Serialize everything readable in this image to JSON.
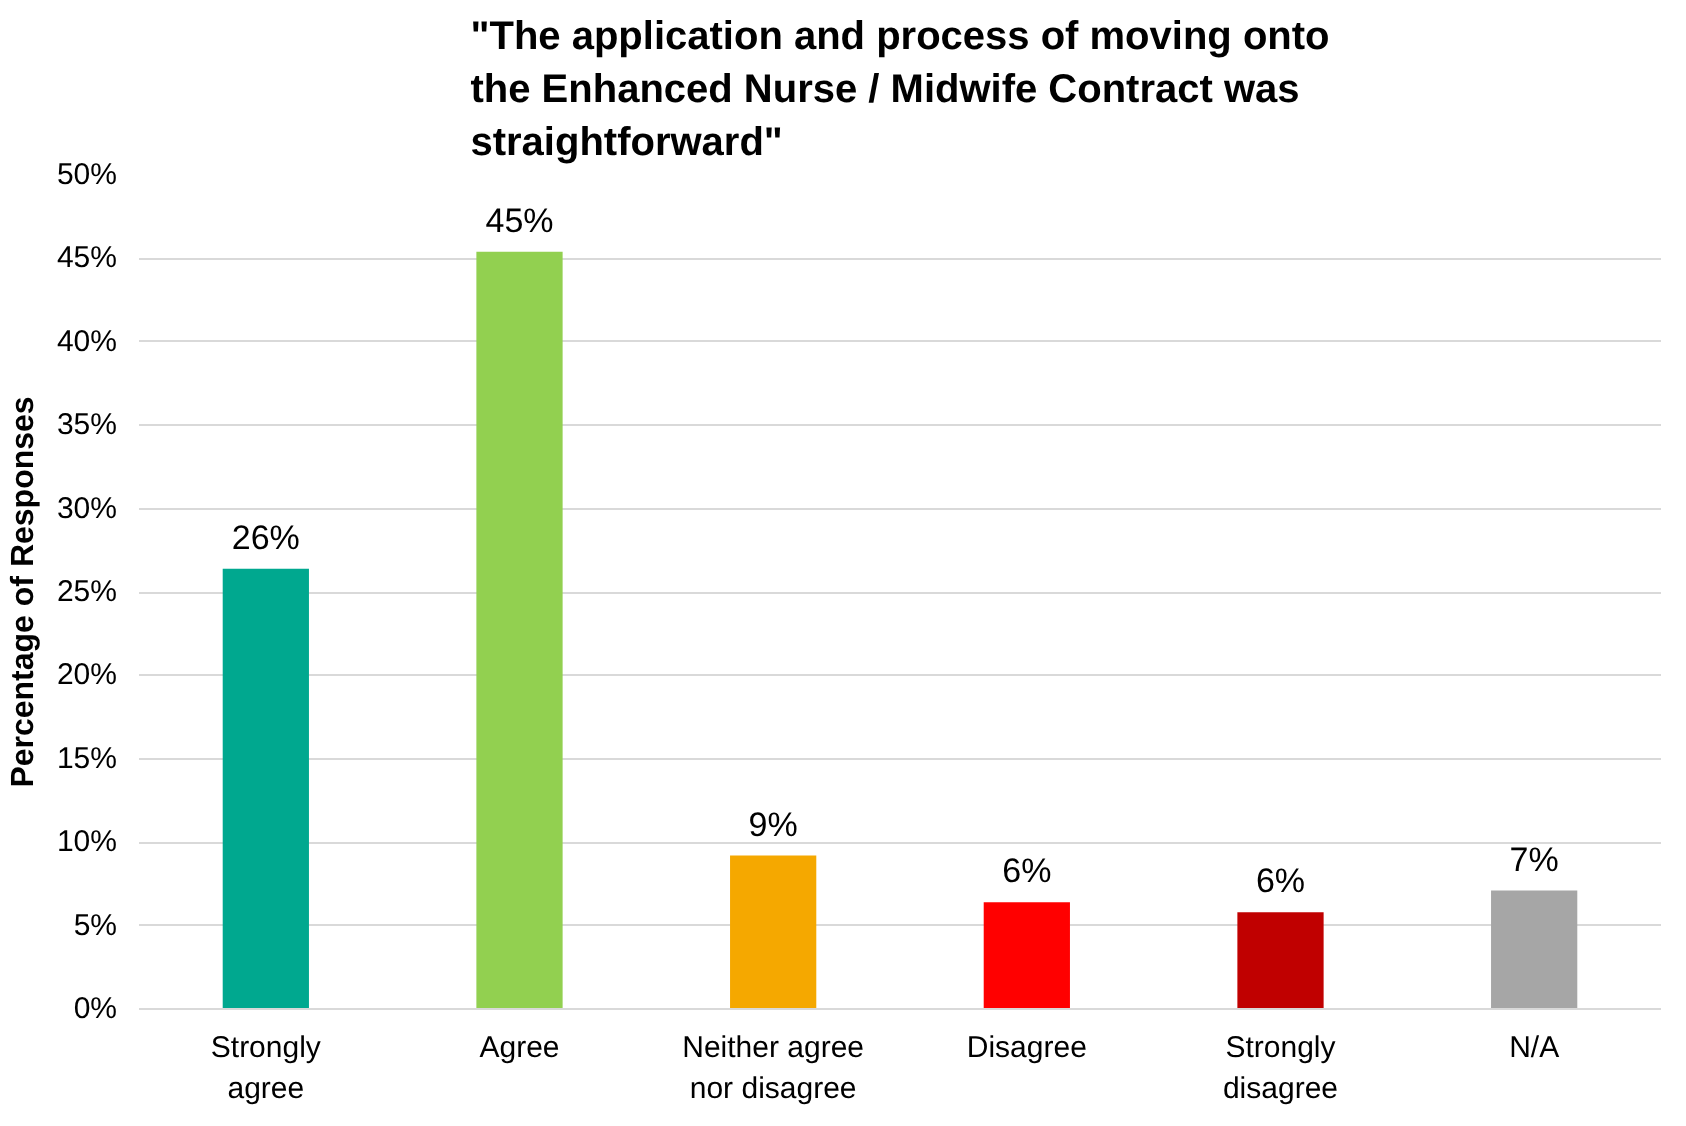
{
  "chart_data": {
    "type": "bar",
    "title": "\"The application and process of moving onto the Enhanced Nurse / Midwife Contract was straightforward\"",
    "ylabel": "Percentage of Responses",
    "categories": [
      "Strongly agree",
      "Agree",
      "Neither agree nor disagree",
      "Disagree",
      "Strongly disagree",
      "N/A"
    ],
    "values": [
      26.4,
      45.4,
      9.2,
      6.4,
      5.8,
      7.1
    ],
    "value_labels": [
      "26%",
      "45%",
      "9%",
      "6%",
      "6%",
      "7%"
    ],
    "colors": [
      "#00a88f",
      "#92d050",
      "#f5a800",
      "#ff0000",
      "#c00000",
      "#a6a6a6"
    ],
    "ylim": [
      0,
      50
    ],
    "yticks": [
      {
        "value": 0,
        "label": "0%"
      },
      {
        "value": 5,
        "label": "5%"
      },
      {
        "value": 10,
        "label": "10%"
      },
      {
        "value": 15,
        "label": "15%"
      },
      {
        "value": 20,
        "label": "20%"
      },
      {
        "value": 25,
        "label": "25%"
      },
      {
        "value": 30,
        "label": "30%"
      },
      {
        "value": 35,
        "label": "35%"
      },
      {
        "value": 40,
        "label": "40%"
      },
      {
        "value": 45,
        "label": "45%"
      },
      {
        "value": 50,
        "label": "50%"
      }
    ],
    "grid": "y"
  }
}
